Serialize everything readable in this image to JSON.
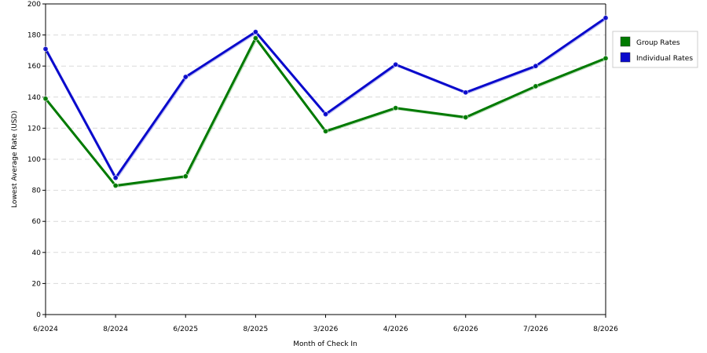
{
  "chart_data": {
    "type": "line",
    "title": "",
    "xlabel": "Month of Check In",
    "ylabel": "Lowest Average Rate (USD)",
    "categories": [
      "6/2024",
      "8/2024",
      "6/2025",
      "8/2025",
      "3/2026",
      "4/2026",
      "6/2026",
      "7/2026",
      "8/2026"
    ],
    "ylim": [
      0,
      200
    ],
    "yticks": [
      0,
      20,
      40,
      60,
      80,
      100,
      120,
      140,
      160,
      180,
      200
    ],
    "grid": true,
    "legend_position": "top-right",
    "series": [
      {
        "name": "Group Rates",
        "color": "#007a00",
        "values": [
          139,
          83,
          89,
          178,
          118,
          133,
          127,
          147,
          165
        ]
      },
      {
        "name": "Individual Rates",
        "color": "#0a0acc",
        "values": [
          171,
          88,
          153,
          182,
          129,
          161,
          143,
          160,
          191
        ]
      }
    ]
  }
}
